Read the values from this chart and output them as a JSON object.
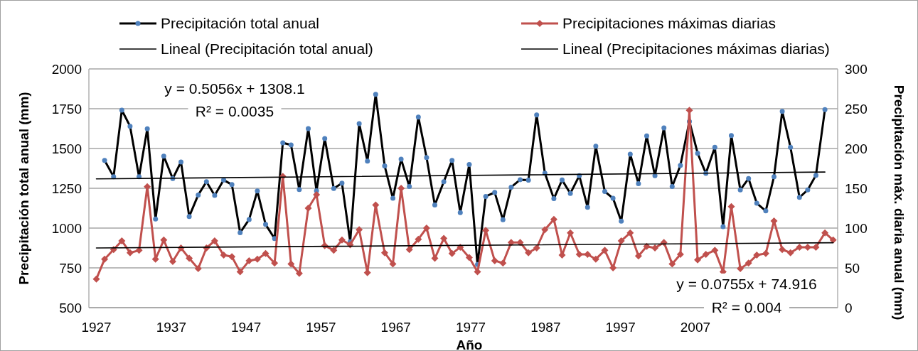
{
  "chart_data": {
    "type": "line",
    "xlabel": "Año",
    "ylabel": "Precipitación total anual (mm)",
    "y2label": "Precipitación máx. diaria anual (mm)",
    "x": [
      1927.0,
      1928.1,
      1929.3,
      1930.4,
      1931.5,
      1932.7,
      1933.8,
      1934.9,
      1936.0,
      1937.2,
      1938.3,
      1939.4,
      1940.6,
      1941.7,
      1942.8,
      1944.0,
      1945.1,
      1946.2,
      1947.4,
      1948.5,
      1949.6,
      1950.8,
      1951.9,
      1953.0,
      1954.1,
      1955.3,
      1956.4,
      1957.5,
      1958.7,
      1959.8,
      1960.9,
      1962.1,
      1963.2,
      1964.3,
      1965.5,
      1966.6,
      1967.7,
      1968.8,
      1970.0,
      1971.1,
      1972.2,
      1973.4,
      1974.5,
      1975.6,
      1976.8,
      1977.9,
      1979.0,
      1980.2,
      1981.3,
      1982.4,
      1983.6,
      1984.7,
      1985.8,
      1986.9,
      1988.1,
      1989.2,
      1990.3,
      1991.5,
      1992.6,
      1993.7,
      1994.9,
      1996.0,
      1997.1,
      1998.3,
      1999.4,
      2000.5,
      2001.6,
      2002.8,
      2003.9,
      2005.0,
      2006.2,
      2007.3,
      2008.4,
      2009.6,
      2010.7,
      2011.8,
      2013.0,
      2014.1,
      2015.2,
      2016.4,
      2017.5,
      2018.6,
      2019.7,
      2020.9,
      2022.0,
      2023.1,
      2024.3,
      2025.4
    ],
    "xlim": [
      1926,
      2026
    ],
    "xticks": [
      1927,
      1937,
      1947,
      1957,
      1967,
      1977,
      1987,
      1997,
      2007
    ],
    "ylim": [
      500,
      2000
    ],
    "yticks": [
      500,
      750,
      1000,
      1250,
      1500,
      1750,
      2000
    ],
    "y2lim": [
      0,
      300
    ],
    "y2ticks": [
      0,
      50,
      100,
      150,
      200,
      250,
      300
    ],
    "grid": "y",
    "legend": "top",
    "series": [
      {
        "name": "Precipitación total anual",
        "color": "#000000",
        "marker": "circle",
        "values": [
          null,
          1425,
          1323,
          1741,
          1640,
          1323,
          1624,
          1057,
          1452,
          1311,
          1415,
          1073,
          1208,
          1291,
          1205,
          1302,
          1273,
          971,
          1054,
          1233,
          1023,
          934,
          1536,
          1522,
          1242,
          1625,
          1234,
          1563,
          1249,
          1282,
          914,
          1656,
          1421,
          1840,
          1391,
          1187,
          1433,
          1261,
          1698,
          1443,
          1145,
          1291,
          1425,
          1097,
          1399,
          771,
          1199,
          1224,
          1052,
          1257,
          1304,
          1301,
          1711,
          1345,
          1185,
          1302,
          1218,
          1329,
          1131,
          1514,
          1230,
          1187,
          1043,
          1464,
          1279,
          1579,
          1329,
          1630,
          1261,
          1394,
          1670,
          1470,
          1344,
          1508,
          1009,
          1581,
          1240,
          1311,
          1156,
          1108,
          1323,
          1733,
          1508,
          1193,
          1240,
          1332,
          1744,
          null
        ]
      },
      {
        "name": "Precipitaciones máximas diarias",
        "color": "#c0504d",
        "marker": "diamond",
        "axis": "y2",
        "values": [
          36,
          61,
          73,
          84,
          69,
          72,
          152,
          61,
          85,
          58,
          75,
          62,
          49,
          75,
          84,
          66,
          64,
          45,
          59,
          61,
          68,
          56,
          165,
          55,
          43,
          125,
          142,
          78,
          72,
          85,
          79,
          98,
          44,
          129,
          69,
          55,
          150,
          73,
          86,
          100,
          62,
          87,
          68,
          76,
          63,
          45,
          97,
          59,
          56,
          82,
          82,
          69,
          75,
          98,
          111,
          66,
          94,
          67,
          67,
          61,
          72,
          50,
          84,
          94,
          65,
          77,
          75,
          82,
          55,
          67,
          248,
          60,
          67,
          72,
          45,
          127,
          49,
          56,
          66,
          68,
          109,
          73,
          69,
          76,
          76,
          76,
          94,
          85
        ]
      },
      {
        "name": "Lineal (Precipitación total anual)",
        "color": "#000000",
        "marker": "none",
        "x": [
          1927.0,
          2024.3
        ],
        "values": [
          1309,
          1352
        ]
      },
      {
        "name": "Lineal (Precipitaciones máximas diarias)",
        "color": "#000000",
        "marker": "none",
        "axis": "y2",
        "x": [
          1927.0,
          2025.4
        ],
        "values": [
          75.0,
          81.6
        ]
      }
    ],
    "annotations": [
      "y = 0.5056x + 1308.1",
      "R² = 0.0035",
      "y = 0.0755x + 74.916",
      "R² = 0.004"
    ]
  }
}
